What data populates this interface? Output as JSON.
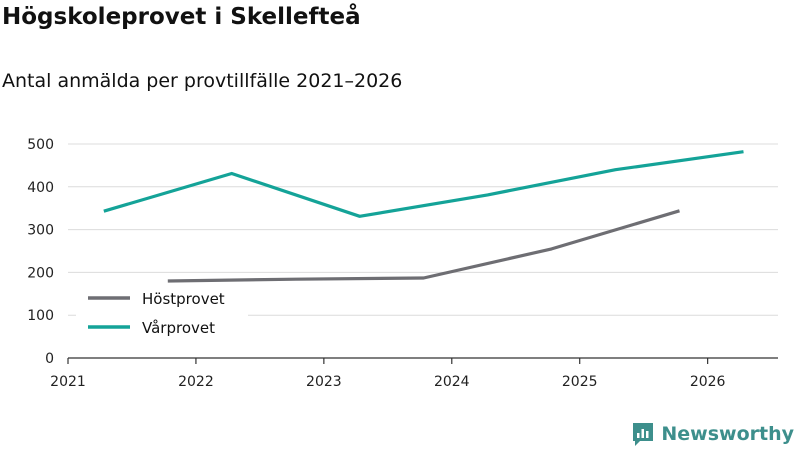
{
  "header": {
    "title": "Högskoleprovet i Skellefteå",
    "subtitle": "Antal anmälda per provtillfälle 2021–2026"
  },
  "brand": {
    "name": "Newsworthy",
    "icon": "newsworthy-logo-icon",
    "color": "#3d8f8c"
  },
  "chart_data": {
    "type": "line",
    "x_ticks": [
      "2021",
      "2022",
      "2023",
      "2024",
      "2025",
      "2026"
    ],
    "y_ticks": [
      0,
      100,
      200,
      300,
      400,
      500
    ],
    "ylim": [
      0,
      500
    ],
    "xlim": [
      2021,
      2026.55
    ],
    "grid": true,
    "legend_position": "bottom-left",
    "series": [
      {
        "name": "Höstprovet",
        "color": "#6e6e73",
        "x": [
          2021.78,
          2022.78,
          2023.78,
          2024.78,
          2025.78
        ],
        "y": [
          180,
          184,
          187,
          255,
          344
        ]
      },
      {
        "name": "Vårprovet",
        "color": "#14a398",
        "x": [
          2021.28,
          2022.28,
          2023.28,
          2024.28,
          2025.28,
          2026.28
        ],
        "y": [
          343,
          431,
          331,
          381,
          440,
          482
        ]
      }
    ]
  }
}
